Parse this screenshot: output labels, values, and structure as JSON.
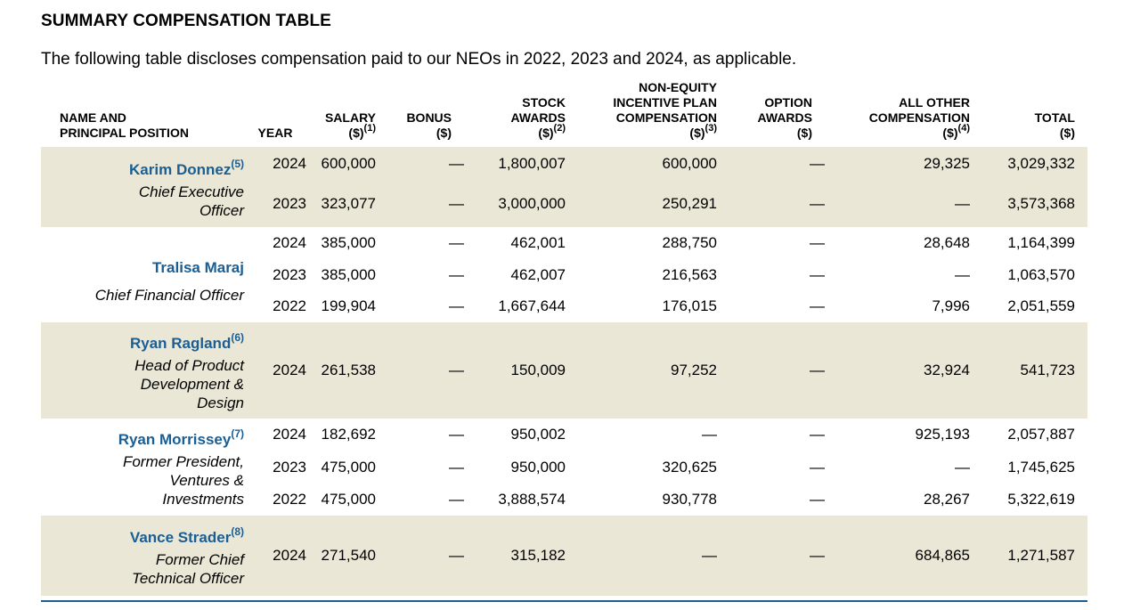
{
  "title": "SUMMARY COMPENSATION TABLE",
  "intro": "The following table discloses compensation paid to our NEOs in 2022, 2023 and 2024, as applicable.",
  "headers": {
    "name_l1": "NAME AND",
    "name_l2": "PRINCIPAL POSITION",
    "year": "YEAR",
    "salary_l1": "SALARY",
    "salary_l2": "($)",
    "salary_note": "(1)",
    "bonus_l1": "BONUS",
    "bonus_l2": "($)",
    "stock_l1": "STOCK",
    "stock_l2": "AWARDS",
    "stock_l3": "($)",
    "stock_note": "(2)",
    "nei_l1": "NON-EQUITY",
    "nei_l2": "INCENTIVE PLAN",
    "nei_l3": "COMPENSATION",
    "nei_l4": "($)",
    "nei_note": "(3)",
    "option_l1": "OPTION",
    "option_l2": "AWARDS",
    "option_l3": "($)",
    "other_l1": "ALL OTHER",
    "other_l2": "COMPENSATION",
    "other_l3": "($)",
    "other_note": "(4)",
    "total_l1": "TOTAL",
    "total_l2": "($)"
  },
  "executives": [
    {
      "name": "Karim Donnez",
      "note": "(5)",
      "position_l1": "Chief Executive",
      "position_l2": "Officer",
      "rows": [
        {
          "year": "2024",
          "salary": "600,000",
          "bonus": "—",
          "stock": "1,800,007",
          "nei": "600,000",
          "option": "—",
          "other": "29,325",
          "total": "3,029,332"
        },
        {
          "year": "2023",
          "salary": "323,077",
          "bonus": "—",
          "stock": "3,000,000",
          "nei": "250,291",
          "option": "—",
          "other": "—",
          "total": "3,573,368"
        }
      ]
    },
    {
      "name": "Tralisa Maraj",
      "note": "",
      "position_l1": "Chief Financial Officer",
      "rows": [
        {
          "year": "2024",
          "salary": "385,000",
          "bonus": "—",
          "stock": "462,001",
          "nei": "288,750",
          "option": "—",
          "other": "28,648",
          "total": "1,164,399"
        },
        {
          "year": "2023",
          "salary": "385,000",
          "bonus": "—",
          "stock": "462,007",
          "nei": "216,563",
          "option": "—",
          "other": "—",
          "total": "1,063,570"
        },
        {
          "year": "2022",
          "salary": "199,904",
          "bonus": "—",
          "stock": "1,667,644",
          "nei": "176,015",
          "option": "—",
          "other": "7,996",
          "total": "2,051,559"
        }
      ]
    },
    {
      "name": "Ryan Ragland",
      "note": "(6)",
      "position_l1": "Head of Product",
      "position_l2": "Development &",
      "position_l3": "Design",
      "rows": [
        {
          "year": "2024",
          "salary": "261,538",
          "bonus": "—",
          "stock": "150,009",
          "nei": "97,252",
          "option": "—",
          "other": "32,924",
          "total": "541,723"
        }
      ]
    },
    {
      "name": "Ryan Morrissey",
      "note": "(7)",
      "position_l1": "Former President,",
      "position_l2": "Ventures &",
      "position_l3": "Investments",
      "rows": [
        {
          "year": "2024",
          "salary": "182,692",
          "bonus": "—",
          "stock": "950,002",
          "nei": "—",
          "option": "—",
          "other": "925,193",
          "total": "2,057,887"
        },
        {
          "year": "2023",
          "salary": "475,000",
          "bonus": "—",
          "stock": "950,000",
          "nei": "320,625",
          "option": "—",
          "other": "—",
          "total": "1,745,625"
        },
        {
          "year": "2022",
          "salary": "475,000",
          "bonus": "—",
          "stock": "3,888,574",
          "nei": "930,778",
          "option": "—",
          "other": "28,267",
          "total": "5,322,619"
        }
      ]
    },
    {
      "name": "Vance Strader",
      "note": "(8)",
      "position_l1": "Former Chief",
      "position_l2": "Technical Officer",
      "rows": [
        {
          "year": "2024",
          "salary": "271,540",
          "bonus": "—",
          "stock": "315,182",
          "nei": "—",
          "option": "—",
          "other": "684,865",
          "total": "1,271,587"
        }
      ]
    }
  ]
}
